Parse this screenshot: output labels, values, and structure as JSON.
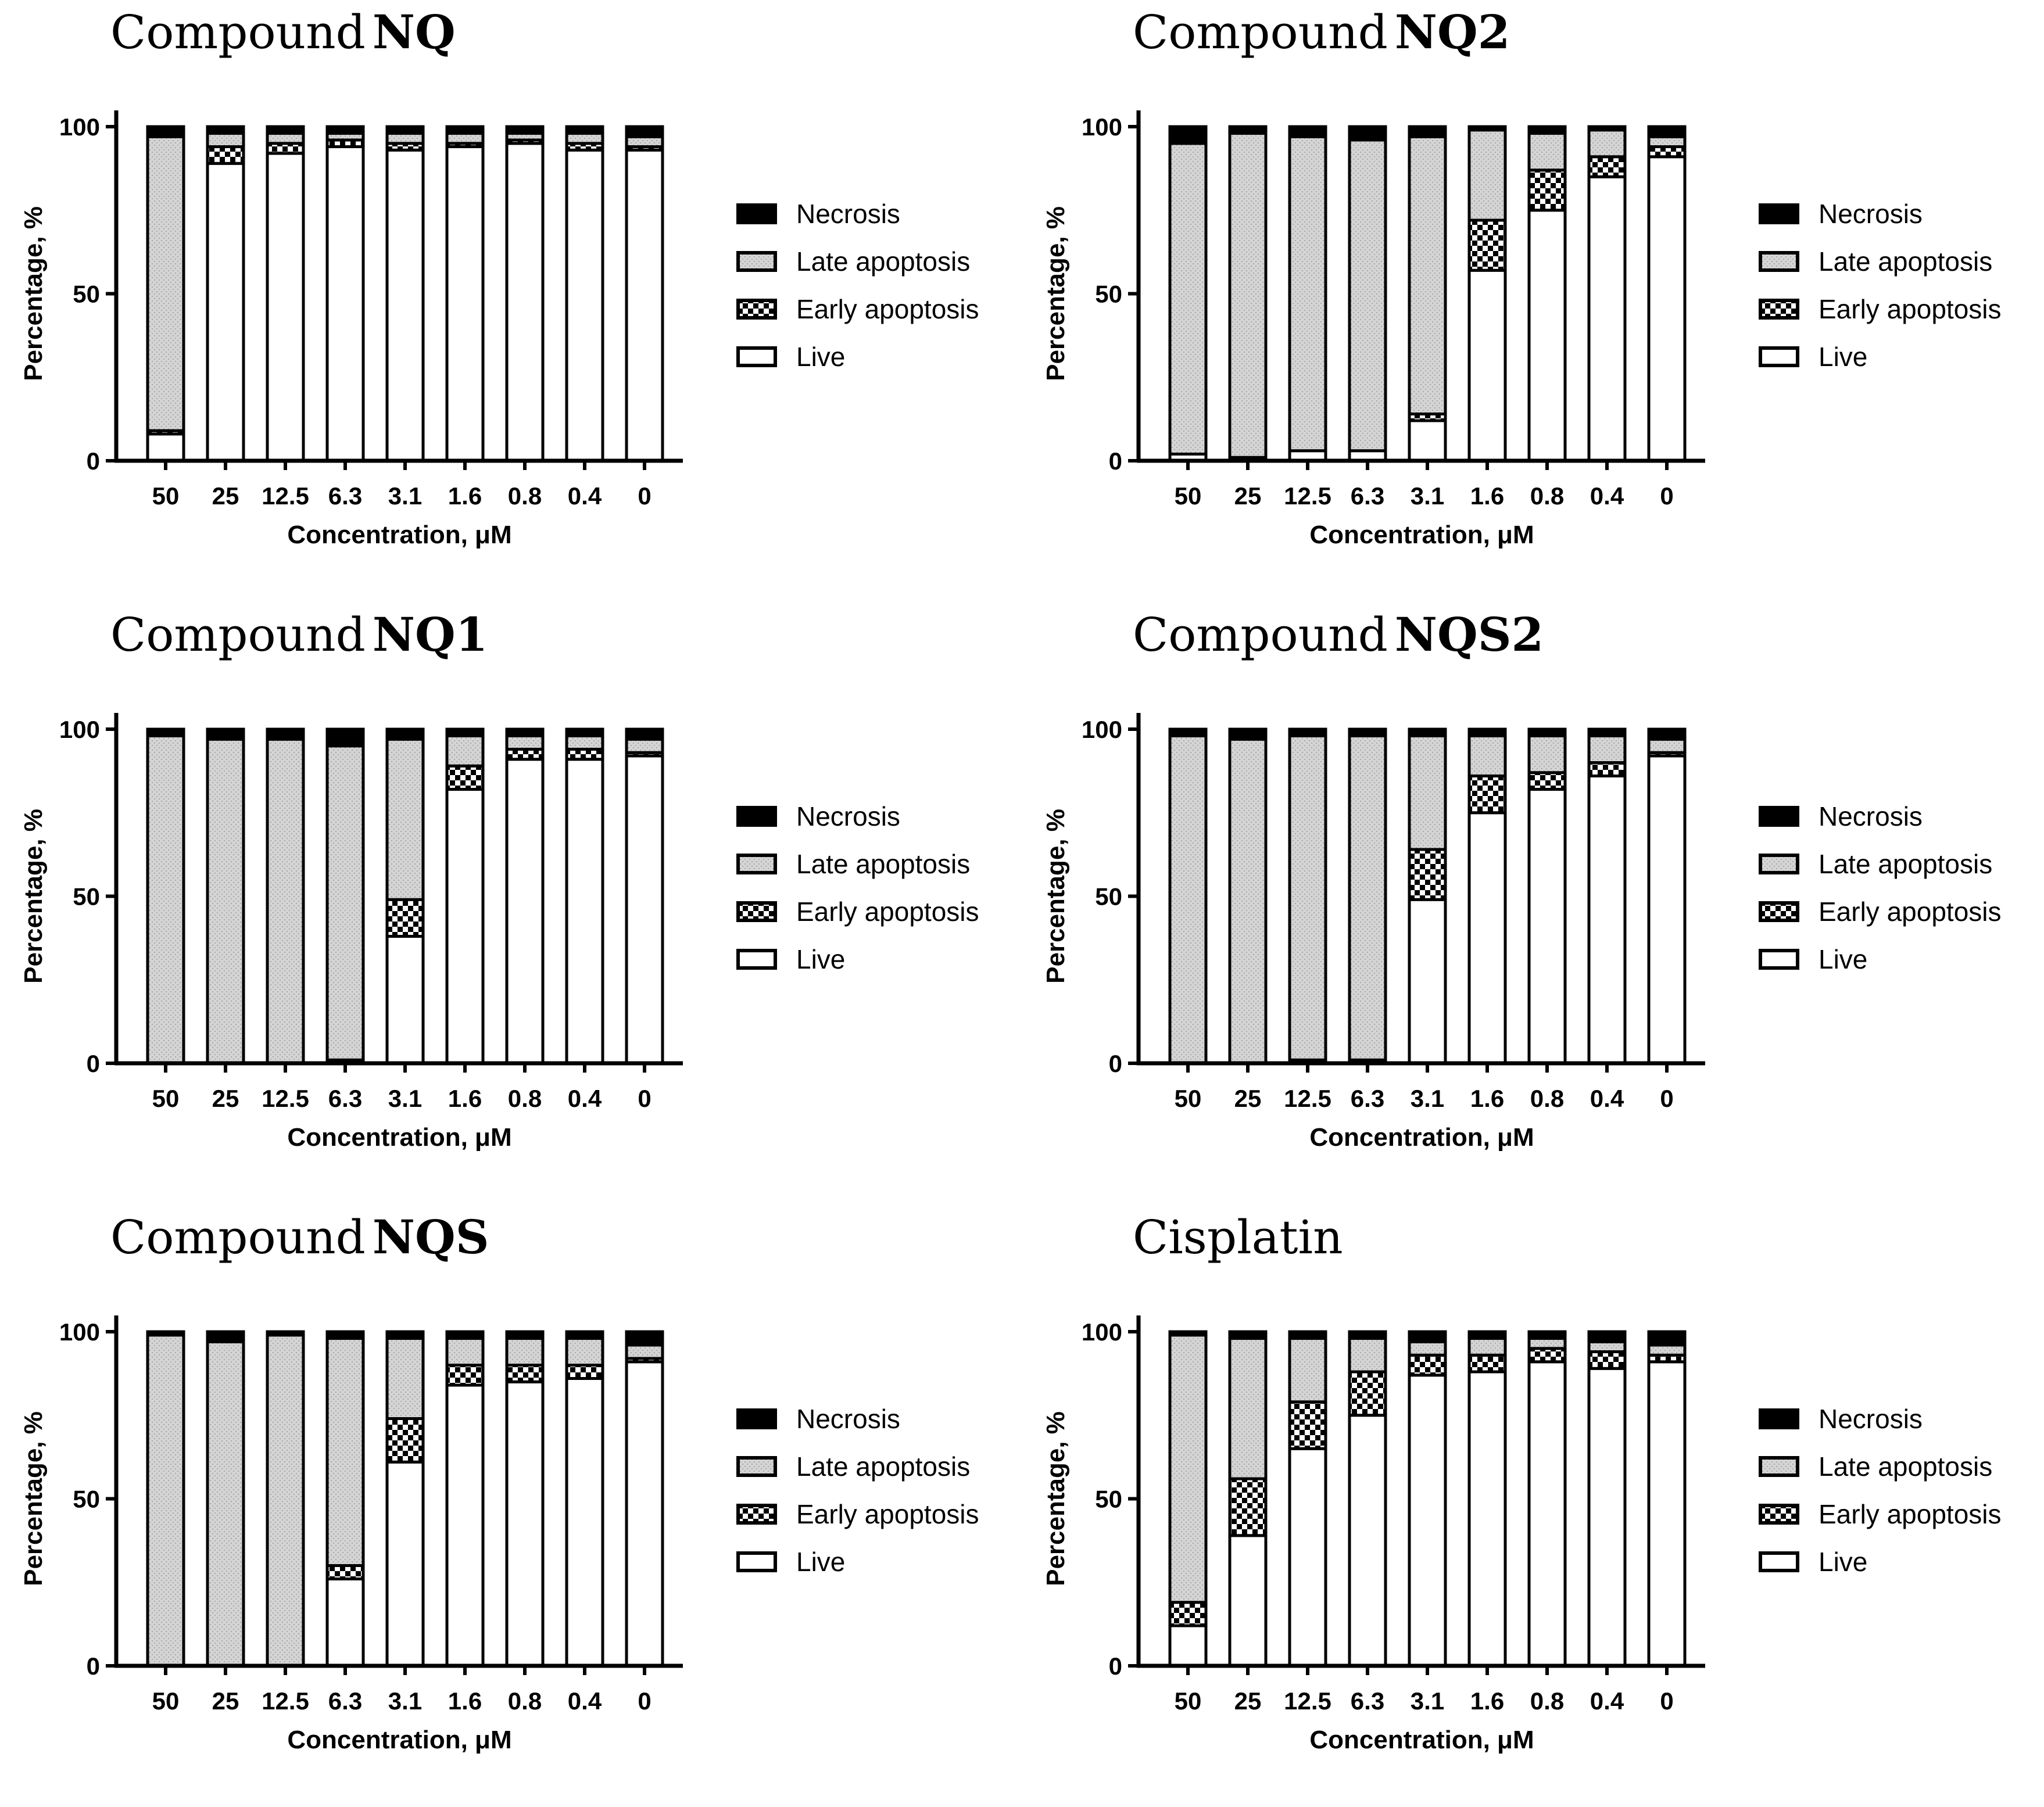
{
  "legend": [
    "Necrosis",
    "Late apoptosis",
    "Early apoptosis",
    "Live"
  ],
  "colors": {
    "necrosis": "#000000",
    "late": "#d4d4d4",
    "early": "#000000",
    "live": "#ffffff"
  },
  "chart_data": [
    {
      "type": "bar",
      "stacked": true,
      "title_prefix": "Compound",
      "title_bold": "NQ",
      "xlabel": "Concentration, μM",
      "ylabel": "Percentage, %",
      "ylim": [
        0,
        100
      ],
      "yticks": [
        0,
        50,
        100
      ],
      "categories": [
        "50",
        "25",
        "12.5",
        "6.3",
        "3.1",
        "1.6",
        "0.8",
        "0.4",
        "0"
      ],
      "series": [
        {
          "name": "Live",
          "values": [
            8,
            89,
            92,
            94,
            93,
            94,
            95,
            93,
            93
          ]
        },
        {
          "name": "Early apoptosis",
          "values": [
            1,
            5,
            3,
            2,
            2,
            1,
            1,
            2,
            1
          ]
        },
        {
          "name": "Late apoptosis",
          "values": [
            88,
            4,
            3,
            2,
            3,
            3,
            2,
            3,
            3
          ]
        },
        {
          "name": "Necrosis",
          "values": [
            3,
            2,
            2,
            2,
            2,
            2,
            2,
            2,
            3
          ]
        }
      ]
    },
    {
      "type": "bar",
      "stacked": true,
      "title_prefix": "Compound",
      "title_bold": "NQ2",
      "xlabel": "Concentration, μM",
      "ylabel": "Percentage, %",
      "ylim": [
        0,
        100
      ],
      "yticks": [
        0,
        50,
        100
      ],
      "categories": [
        "50",
        "25",
        "12.5",
        "6.3",
        "3.1",
        "1.6",
        "0.8",
        "0.4",
        "0"
      ],
      "series": [
        {
          "name": "Live",
          "values": [
            2,
            1,
            3,
            3,
            12,
            57,
            75,
            85,
            91
          ]
        },
        {
          "name": "Early apoptosis",
          "values": [
            0,
            0,
            0,
            0,
            2,
            15,
            12,
            6,
            3
          ]
        },
        {
          "name": "Late apoptosis",
          "values": [
            93,
            97,
            94,
            93,
            83,
            27,
            11,
            8,
            3
          ]
        },
        {
          "name": "Necrosis",
          "values": [
            5,
            2,
            3,
            4,
            3,
            1,
            2,
            1,
            3
          ]
        }
      ]
    },
    {
      "type": "bar",
      "stacked": true,
      "title_prefix": "Compound",
      "title_bold": "NQ1",
      "xlabel": "Concentration, μM",
      "ylabel": "Percentage, %",
      "ylim": [
        0,
        100
      ],
      "yticks": [
        0,
        50,
        100
      ],
      "categories": [
        "50",
        "25",
        "12.5",
        "6.3",
        "3.1",
        "1.6",
        "0.8",
        "0.4",
        "0"
      ],
      "series": [
        {
          "name": "Live",
          "values": [
            0,
            0,
            0,
            1,
            38,
            82,
            91,
            91,
            92
          ]
        },
        {
          "name": "Early apoptosis",
          "values": [
            0,
            0,
            0,
            0,
            11,
            7,
            3,
            3,
            1
          ]
        },
        {
          "name": "Late apoptosis",
          "values": [
            98,
            97,
            97,
            94,
            48,
            9,
            4,
            4,
            4
          ]
        },
        {
          "name": "Necrosis",
          "values": [
            2,
            3,
            3,
            5,
            3,
            2,
            2,
            2,
            3
          ]
        }
      ]
    },
    {
      "type": "bar",
      "stacked": true,
      "title_prefix": "Compound",
      "title_bold": "NQS2",
      "xlabel": "Concentration, μM",
      "ylabel": "Percentage, %",
      "ylim": [
        0,
        100
      ],
      "yticks": [
        0,
        50,
        100
      ],
      "categories": [
        "50",
        "25",
        "12.5",
        "6.3",
        "3.1",
        "1.6",
        "0.8",
        "0.4",
        "0"
      ],
      "series": [
        {
          "name": "Live",
          "values": [
            0,
            0,
            1,
            1,
            49,
            75,
            82,
            86,
            92
          ]
        },
        {
          "name": "Early apoptosis",
          "values": [
            0,
            0,
            0,
            0,
            15,
            11,
            5,
            4,
            1
          ]
        },
        {
          "name": "Late apoptosis",
          "values": [
            98,
            97,
            97,
            97,
            34,
            12,
            11,
            8,
            4
          ]
        },
        {
          "name": "Necrosis",
          "values": [
            2,
            3,
            2,
            2,
            2,
            2,
            2,
            2,
            3
          ]
        }
      ]
    },
    {
      "type": "bar",
      "stacked": true,
      "title_prefix": "Compound",
      "title_bold": "NQS",
      "xlabel": "Concentration, μM",
      "ylabel": "Percentage, %",
      "ylim": [
        0,
        100
      ],
      "yticks": [
        0,
        50,
        100
      ],
      "categories": [
        "50",
        "25",
        "12.5",
        "6.3",
        "3.1",
        "1.6",
        "0.8",
        "0.4",
        "0"
      ],
      "series": [
        {
          "name": "Live",
          "values": [
            0,
            0,
            0,
            26,
            61,
            84,
            85,
            86,
            91
          ]
        },
        {
          "name": "Early apoptosis",
          "values": [
            0,
            0,
            0,
            4,
            13,
            6,
            5,
            4,
            1
          ]
        },
        {
          "name": "Late apoptosis",
          "values": [
            99,
            97,
            99,
            68,
            24,
            8,
            8,
            8,
            4
          ]
        },
        {
          "name": "Necrosis",
          "values": [
            1,
            3,
            1,
            2,
            2,
            2,
            2,
            2,
            4
          ]
        }
      ]
    },
    {
      "type": "bar",
      "stacked": true,
      "title_prefix": "Cisplatin",
      "title_bold": "",
      "xlabel": "Concentration, μM",
      "ylabel": "Percentage, %",
      "ylim": [
        0,
        100
      ],
      "yticks": [
        0,
        50,
        100
      ],
      "categories": [
        "50",
        "25",
        "12.5",
        "6.3",
        "3.1",
        "1.6",
        "0.8",
        "0.4",
        "0"
      ],
      "series": [
        {
          "name": "Live",
          "values": [
            12,
            39,
            65,
            75,
            87,
            88,
            91,
            89,
            91
          ]
        },
        {
          "name": "Early apoptosis",
          "values": [
            7,
            17,
            14,
            13,
            6,
            5,
            4,
            5,
            2
          ]
        },
        {
          "name": "Late apoptosis",
          "values": [
            80,
            42,
            19,
            10,
            4,
            5,
            3,
            3,
            3
          ]
        },
        {
          "name": "Necrosis",
          "values": [
            1,
            2,
            2,
            2,
            3,
            2,
            2,
            3,
            4
          ]
        }
      ]
    }
  ]
}
